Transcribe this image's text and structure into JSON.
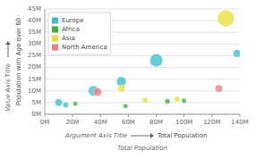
{
  "chart_data": {
    "type": "bubble",
    "xlabel": "Total Population",
    "ylabel": "Population with Age over 60",
    "annotations": [
      "Argument Axis Title",
      "Value Axis Title"
    ],
    "xlim": [
      0,
      140000000
    ],
    "ylim": [
      0,
      45000000
    ],
    "xticks": [
      {
        "value": 0,
        "label": "0M"
      },
      {
        "value": 20000000,
        "label": "20M"
      },
      {
        "value": 40000000,
        "label": "40M"
      },
      {
        "value": 60000000,
        "label": "60M"
      },
      {
        "value": 80000000,
        "label": "80M"
      },
      {
        "value": 100000000,
        "label": "100M"
      },
      {
        "value": 120000000,
        "label": "120M"
      },
      {
        "value": 140000000,
        "label": "140M"
      }
    ],
    "yticks": [
      {
        "value": 0,
        "label": "0M"
      },
      {
        "value": 5000000,
        "label": "5M"
      },
      {
        "value": 10000000,
        "label": "10M"
      },
      {
        "value": 15000000,
        "label": "15M"
      },
      {
        "value": 20000000,
        "label": "20M"
      },
      {
        "value": 25000000,
        "label": "25M"
      },
      {
        "value": 30000000,
        "label": "30M"
      },
      {
        "value": 35000000,
        "label": "35M"
      },
      {
        "value": 40000000,
        "label": "40M"
      },
      {
        "value": 45000000,
        "label": "45M"
      }
    ],
    "grid": true,
    "legend": "upper left",
    "series": [
      {
        "name": "Europe",
        "color": "#40c0d0",
        "x": [
          10000000,
          15000000,
          35000000,
          55000000,
          80000000,
          138000000
        ],
        "values": [
          5000000,
          4000000,
          10000000,
          14000000,
          23000000,
          26000000
        ],
        "sizes": [
          18000000,
          12000000,
          30000000,
          28000000,
          40000000,
          20000000
        ]
      },
      {
        "name": "Africa",
        "color": "#40b040",
        "x": [
          22000000,
          58000000,
          88000000,
          100000000
        ],
        "values": [
          4500000,
          3500000,
          5500000,
          5800000
        ],
        "sizes": [
          8000000,
          8000000,
          10000000,
          9000000
        ]
      },
      {
        "name": "Asia",
        "color": "#e8e040",
        "x": [
          55000000,
          72000000,
          95000000,
          130000000
        ],
        "values": [
          11000000,
          6000000,
          6500000,
          41000000
        ],
        "sizes": [
          18000000,
          12000000,
          12000000,
          55000000
        ]
      },
      {
        "name": "North America",
        "color": "#f08080",
        "x": [
          38000000,
          125000000
        ],
        "values": [
          9500000,
          11000000
        ],
        "sizes": [
          22000000,
          18000000
        ]
      }
    ]
  }
}
